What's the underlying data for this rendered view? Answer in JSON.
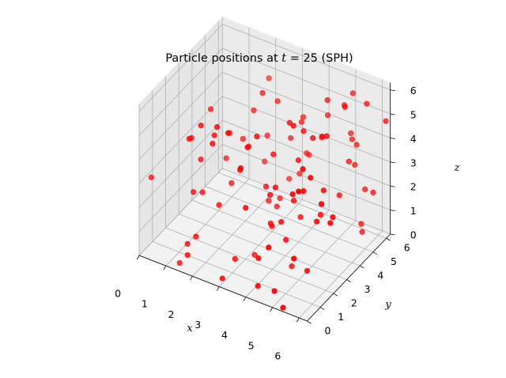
{
  "chart_data": {
    "type": "scatter",
    "title": {
      "prefix": "Particle positions at ",
      "variable": "t",
      "suffix": " = 25 (SPH)"
    },
    "xlabel": "x",
    "ylabel": "y",
    "zlabel": "z",
    "xlim": [
      0,
      6.3
    ],
    "ylim": [
      0,
      6.3
    ],
    "zlim": [
      0,
      6.3
    ],
    "x_ticks": [
      "0",
      "1",
      "2",
      "3",
      "4",
      "5",
      "6"
    ],
    "y_ticks": [
      "0",
      "1",
      "2",
      "3",
      "4",
      "5",
      "6"
    ],
    "z_ticks": [
      "0",
      "1",
      "2",
      "3",
      "4",
      "5",
      "6"
    ],
    "grid": true,
    "marker_color": "#ff0000",
    "points": [
      [
        0.3,
        0.31,
        3.2
      ],
      [
        1.39,
        0.26,
        0.14
      ],
      [
        2.01,
        0.24,
        1.52
      ],
      [
        3.01,
        0.22,
        0.22
      ],
      [
        1.49,
        0.95,
        4.99
      ],
      [
        1.62,
        0.84,
        2.86
      ],
      [
        4.29,
        0.33,
        0.4
      ],
      [
        1.7,
        1.24,
        4.02
      ],
      [
        4.2,
        0.55,
        1.39
      ],
      [
        1.92,
        0.92,
        2.93
      ],
      [
        1.74,
        0.28,
        5.45
      ],
      [
        3.06,
        1.08,
        0.56
      ],
      [
        2.57,
        0.71,
        6.05
      ],
      [
        2.55,
        0.41,
        5.52
      ],
      [
        2.43,
        1.14,
        2.5
      ],
      [
        4.8,
        0.11,
        2.35
      ],
      [
        2.02,
        0.6,
        5.94
      ],
      [
        1.64,
        0.35,
        0.99
      ],
      [
        1.7,
        0.23,
        0.62
      ],
      [
        4.28,
        2.11,
        2.04
      ],
      [
        3.69,
        0.61,
        3.23
      ],
      [
        3.31,
        1.52,
        5.06
      ],
      [
        4.91,
        0.33,
        0.46
      ],
      [
        4.13,
        1.71,
        2.03
      ],
      [
        3.92,
        2.04,
        1.86
      ],
      [
        5.33,
        0.13,
        0.06
      ],
      [
        2.81,
        1.96,
        3.64
      ],
      [
        3.76,
        0.09,
        5.21
      ],
      [
        5.37,
        0.88,
        1.69
      ],
      [
        3.03,
        0.62,
        6.05
      ],
      [
        5.82,
        0.32,
        5.0
      ],
      [
        2.43,
        2.08,
        2.87
      ],
      [
        4.55,
        2.37,
        0.16
      ],
      [
        4.58,
        1.87,
        1.56
      ],
      [
        2.33,
        0.99,
        5.44
      ],
      [
        5.09,
        1.35,
        3.98
      ],
      [
        3.67,
        1.51,
        5.67
      ],
      [
        3.89,
        2.06,
        3.02
      ],
      [
        4.03,
        2.19,
        3.32
      ],
      [
        5.45,
        1.39,
        5.16
      ],
      [
        1.56,
        2.27,
        5.46
      ],
      [
        4.52,
        2.58,
        2.76
      ],
      [
        6.12,
        1.45,
        3.96
      ],
      [
        5.38,
        1.58,
        4.1
      ],
      [
        5.57,
        2.2,
        2.56
      ],
      [
        5.58,
        1.71,
        4.67
      ],
      [
        6.16,
        2.04,
        2.85
      ],
      [
        3.32,
        2.04,
        0.29
      ],
      [
        4.42,
        2.76,
        5.73
      ],
      [
        5.17,
        2.28,
        0.29
      ],
      [
        3.51,
        2.52,
        2.94
      ],
      [
        4.06,
        3.2,
        5.44
      ],
      [
        1.91,
        2.74,
        3.3
      ],
      [
        2.94,
        2.36,
        4.45
      ],
      [
        4.41,
        3.31,
        1.61
      ],
      [
        4.38,
        3.61,
        5.0
      ],
      [
        2.84,
        3.61,
        5.92
      ],
      [
        6.11,
        2.33,
        2.9
      ],
      [
        3.76,
        2.57,
        4.36
      ],
      [
        4.82,
        3.42,
        5.01
      ],
      [
        5.21,
        3.21,
        2.11
      ],
      [
        3.44,
        3.48,
        1.53
      ],
      [
        5.26,
        3.58,
        5.19
      ],
      [
        2.32,
        3.17,
        4.04
      ],
      [
        4.47,
        3.03,
        4.16
      ],
      [
        5.41,
        3.05,
        3.3
      ],
      [
        3.19,
        3.37,
        1.72
      ],
      [
        2.54,
        3.55,
        5.1
      ],
      [
        1.75,
        3.33,
        3.94
      ],
      [
        3.15,
        4.12,
        5.42
      ],
      [
        2.89,
        3.87,
        4.02
      ],
      [
        4.74,
        4.28,
        4.55
      ],
      [
        5.52,
        4.44,
        6.02
      ],
      [
        3.28,
        4.04,
        1.48
      ],
      [
        4.77,
        4.63,
        5.87
      ],
      [
        4.26,
        5.23,
        3.75
      ],
      [
        5.47,
        4.12,
        2.51
      ],
      [
        3.65,
        5.05,
        4.44
      ],
      [
        3.3,
        4.81,
        3.55
      ],
      [
        5.7,
        5.38,
        0.36
      ],
      [
        5.63,
        5.87,
        5.38
      ],
      [
        3.81,
        4.6,
        4.56
      ],
      [
        6.25,
        6.06,
        4.82
      ],
      [
        5.68,
        5.35,
        0.7
      ],
      [
        2.4,
        4.65,
        2.28
      ],
      [
        5.21,
        5.37,
        3.08
      ],
      [
        3.06,
        5.18,
        1.54
      ],
      [
        3.39,
        5.3,
        1.83
      ],
      [
        5.14,
        5.81,
        5.64
      ],
      [
        5.26,
        5.71,
        2.77
      ],
      [
        2.29,
        5.2,
        5.38
      ],
      [
        5.52,
        5.96,
        1.72
      ],
      [
        5.23,
        5.91,
        3.48
      ],
      [
        5.95,
        5.71,
        1.92
      ],
      [
        3.51,
        5.59,
        2.57
      ],
      [
        3.57,
        5.66,
        2.48
      ],
      [
        4.97,
        5.99,
        3.8
      ],
      [
        5.07,
        5.89,
        3.65
      ],
      [
        4.75,
        5.95,
        4.9
      ],
      [
        4.37,
        5.46,
        4.59
      ]
    ]
  }
}
